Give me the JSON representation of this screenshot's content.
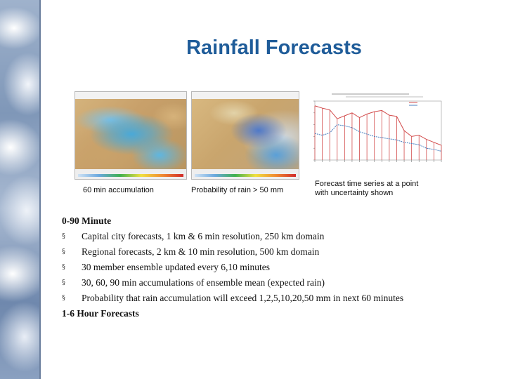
{
  "slide": {
    "title": "Rainfall Forecasts"
  },
  "figures": [
    {
      "id": "map1",
      "caption": "60 min accumulation"
    },
    {
      "id": "map2",
      "caption": "Probability of rain > 50 mm"
    },
    {
      "id": "timeseries",
      "caption_line1": "Forecast time series at a point",
      "caption_line2": "with uncertainty shown"
    }
  ],
  "content": {
    "section1_heading": "0-90 Minute",
    "bullets": [
      "Capital city forecasts, 1 km & 6 min resolution, 250 km domain",
      "Regional forecasts, 2 km & 10 min resolution, 500 km domain",
      "30 member ensemble updated every 6,10 minutes",
      "30, 60, 90 min accumulations of ensemble mean (expected rain)",
      "Probability that rain accumulation will exceed 1,2,5,10,20,50 mm in next 60 minutes"
    ],
    "bullet_marker": "§",
    "section2_heading": "1-6 Hour Forecasts"
  },
  "colors": {
    "title": "#1f5c99",
    "series_red": "#d24a4a",
    "series_blue": "#4a7fbf"
  },
  "chart_data": {
    "type": "line",
    "x": [
      1,
      2,
      3,
      4,
      5,
      6,
      7,
      8,
      9,
      10,
      11,
      12,
      13,
      14,
      15,
      16,
      17,
      18
    ],
    "series": [
      {
        "values": [
          92,
          88,
          85,
          70,
          75,
          80,
          72,
          78,
          82,
          84,
          76,
          74,
          50,
          40,
          42,
          35,
          30,
          25
        ]
      },
      {
        "values": [
          45,
          42,
          46,
          60,
          58,
          55,
          48,
          44,
          40,
          38,
          36,
          34,
          30,
          28,
          26,
          20,
          18,
          15
        ]
      }
    ],
    "ylim": [
      0,
      100
    ],
    "grid": false
  }
}
